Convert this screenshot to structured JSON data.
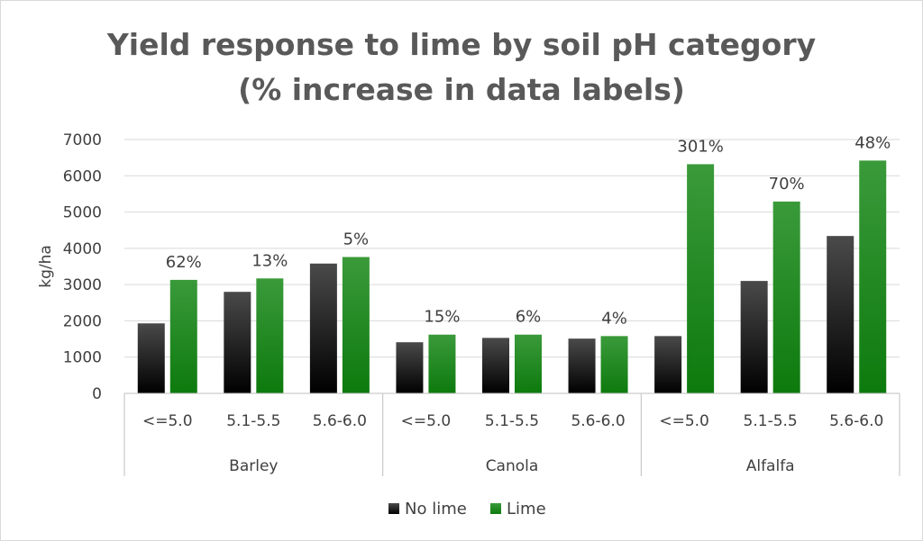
{
  "chart_data": {
    "type": "bar",
    "title": [
      "Yield response to lime by soil pH category",
      "(% increase in data labels)"
    ],
    "ylabel": "kg/ha",
    "xlabel": "",
    "ylim": [
      0,
      7000
    ],
    "yticks": [
      0,
      1000,
      2000,
      3000,
      4000,
      5000,
      6000,
      7000
    ],
    "grid": true,
    "legend_position": "bottom",
    "groups": [
      {
        "name": "Barley",
        "categories": [
          "<=5.0",
          "5.1-5.5",
          "5.6-6.0"
        ]
      },
      {
        "name": "Canola",
        "categories": [
          "<=5.0",
          "5.1-5.5",
          "5.6-6.0"
        ]
      },
      {
        "name": "Alfalfa",
        "categories": [
          "<=5.0",
          "5.1-5.5",
          "5.6-6.0"
        ]
      }
    ],
    "series": [
      {
        "name": "No lime",
        "color": "#1a1a1a",
        "values": [
          1930,
          2800,
          3580,
          1410,
          1530,
          1510,
          1580,
          3100,
          4340
        ]
      },
      {
        "name": "Lime",
        "color": "#1e8c1e",
        "values": [
          3130,
          3170,
          3760,
          1620,
          1620,
          1580,
          6320,
          5290,
          6420
        ]
      }
    ],
    "data_labels": [
      "62%",
      "13%",
      "5%",
      "15%",
      "6%",
      "4%",
      "301%",
      "70%",
      "48%"
    ]
  }
}
